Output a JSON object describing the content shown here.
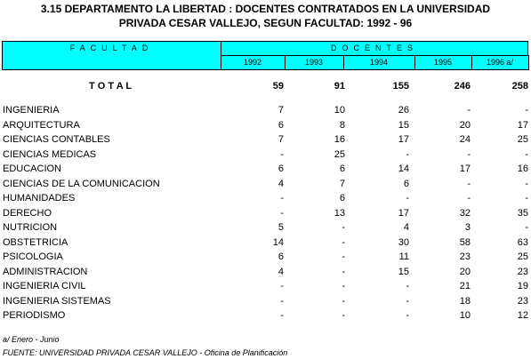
{
  "title": [
    "3.15  DEPARTAMENTO LA LIBERTAD : DOCENTES CONTRATADOS EN LA UNIVERSIDAD",
    "PRIVADA CESAR VALLEJO, SEGUN FACULTAD: 1992 - 96"
  ],
  "header": {
    "facultad": "FACULTAD",
    "docentes": "DOCENTES",
    "years": [
      "1992",
      "1993",
      "1994",
      "1995",
      "1996  a/"
    ]
  },
  "total": {
    "label": "T O T A L",
    "values": [
      59,
      91,
      155,
      246,
      258
    ]
  },
  "rows": [
    {
      "label": "INGENIERIA",
      "values": [
        7,
        10,
        26,
        "-",
        "-"
      ]
    },
    {
      "label": "ARQUITECTURA",
      "values": [
        6,
        8,
        15,
        20,
        17
      ]
    },
    {
      "label": "CIENCIAS CONTABLES",
      "values": [
        7,
        16,
        17,
        24,
        25
      ]
    },
    {
      "label": "CIENCIAS MEDICAS",
      "values": [
        "-",
        25,
        "-",
        "-",
        "-"
      ]
    },
    {
      "label": "EDUCACION",
      "values": [
        6,
        6,
        14,
        17,
        16
      ]
    },
    {
      "label": "CIENCIAS DE LA COMUNICACION",
      "values": [
        4,
        7,
        6,
        "-",
        "-"
      ]
    },
    {
      "label": "HUMANIDADES",
      "values": [
        "-",
        6,
        "-",
        "-",
        "-"
      ]
    },
    {
      "label": "DERECHO",
      "values": [
        "-",
        13,
        17,
        32,
        35
      ]
    },
    {
      "label": "NUTRICION",
      "values": [
        5,
        "-",
        4,
        3,
        "-"
      ]
    },
    {
      "label": "OBSTETRICIA",
      "values": [
        14,
        "-",
        30,
        58,
        63
      ]
    },
    {
      "label": "PSICOLOGIA",
      "values": [
        6,
        "-",
        11,
        23,
        25
      ]
    },
    {
      "label": "ADMINISTRACION",
      "values": [
        4,
        "-",
        15,
        20,
        23
      ]
    },
    {
      "label": "INGENIERIA CIVIL",
      "values": [
        "-",
        "-",
        "-",
        21,
        19
      ]
    },
    {
      "label": "INGENIERIA SISTEMAS",
      "values": [
        "-",
        "-",
        "-",
        18,
        23
      ]
    },
    {
      "label": "PERIODISMO",
      "values": [
        "-",
        "-",
        "-",
        10,
        12
      ]
    }
  ],
  "footnotes": [
    "a/ Enero - Junio",
    "FUENTE: UNIVERSIDAD PRIVADA CESAR VALLEJO - Oficina de Planificación"
  ]
}
